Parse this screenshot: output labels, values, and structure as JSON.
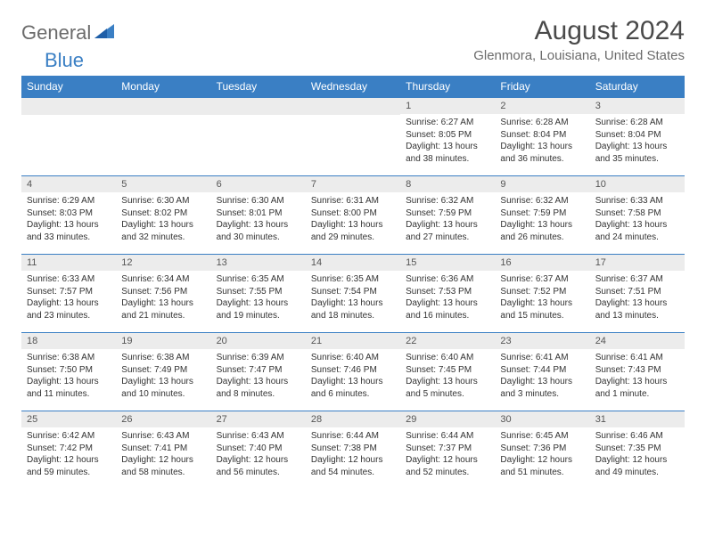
{
  "brand": {
    "part1": "General",
    "part2": "Blue"
  },
  "title": "August 2024",
  "location": "Glenmora, Louisiana, United States",
  "colors": {
    "header_bg": "#3a7fc4",
    "header_text": "#ffffff",
    "daynum_bg": "#ececec",
    "border": "#3a7fc4",
    "title_color": "#4a4a4a",
    "subtitle_color": "#6b6b6b"
  },
  "weekdays": [
    "Sunday",
    "Monday",
    "Tuesday",
    "Wednesday",
    "Thursday",
    "Friday",
    "Saturday"
  ],
  "weeks": [
    [
      null,
      null,
      null,
      null,
      {
        "n": "1",
        "sr": "6:27 AM",
        "ss": "8:05 PM",
        "dl": "13 hours and 38 minutes."
      },
      {
        "n": "2",
        "sr": "6:28 AM",
        "ss": "8:04 PM",
        "dl": "13 hours and 36 minutes."
      },
      {
        "n": "3",
        "sr": "6:28 AM",
        "ss": "8:04 PM",
        "dl": "13 hours and 35 minutes."
      }
    ],
    [
      {
        "n": "4",
        "sr": "6:29 AM",
        "ss": "8:03 PM",
        "dl": "13 hours and 33 minutes."
      },
      {
        "n": "5",
        "sr": "6:30 AM",
        "ss": "8:02 PM",
        "dl": "13 hours and 32 minutes."
      },
      {
        "n": "6",
        "sr": "6:30 AM",
        "ss": "8:01 PM",
        "dl": "13 hours and 30 minutes."
      },
      {
        "n": "7",
        "sr": "6:31 AM",
        "ss": "8:00 PM",
        "dl": "13 hours and 29 minutes."
      },
      {
        "n": "8",
        "sr": "6:32 AM",
        "ss": "7:59 PM",
        "dl": "13 hours and 27 minutes."
      },
      {
        "n": "9",
        "sr": "6:32 AM",
        "ss": "7:59 PM",
        "dl": "13 hours and 26 minutes."
      },
      {
        "n": "10",
        "sr": "6:33 AM",
        "ss": "7:58 PM",
        "dl": "13 hours and 24 minutes."
      }
    ],
    [
      {
        "n": "11",
        "sr": "6:33 AM",
        "ss": "7:57 PM",
        "dl": "13 hours and 23 minutes."
      },
      {
        "n": "12",
        "sr": "6:34 AM",
        "ss": "7:56 PM",
        "dl": "13 hours and 21 minutes."
      },
      {
        "n": "13",
        "sr": "6:35 AM",
        "ss": "7:55 PM",
        "dl": "13 hours and 19 minutes."
      },
      {
        "n": "14",
        "sr": "6:35 AM",
        "ss": "7:54 PM",
        "dl": "13 hours and 18 minutes."
      },
      {
        "n": "15",
        "sr": "6:36 AM",
        "ss": "7:53 PM",
        "dl": "13 hours and 16 minutes."
      },
      {
        "n": "16",
        "sr": "6:37 AM",
        "ss": "7:52 PM",
        "dl": "13 hours and 15 minutes."
      },
      {
        "n": "17",
        "sr": "6:37 AM",
        "ss": "7:51 PM",
        "dl": "13 hours and 13 minutes."
      }
    ],
    [
      {
        "n": "18",
        "sr": "6:38 AM",
        "ss": "7:50 PM",
        "dl": "13 hours and 11 minutes."
      },
      {
        "n": "19",
        "sr": "6:38 AM",
        "ss": "7:49 PM",
        "dl": "13 hours and 10 minutes."
      },
      {
        "n": "20",
        "sr": "6:39 AM",
        "ss": "7:47 PM",
        "dl": "13 hours and 8 minutes."
      },
      {
        "n": "21",
        "sr": "6:40 AM",
        "ss": "7:46 PM",
        "dl": "13 hours and 6 minutes."
      },
      {
        "n": "22",
        "sr": "6:40 AM",
        "ss": "7:45 PM",
        "dl": "13 hours and 5 minutes."
      },
      {
        "n": "23",
        "sr": "6:41 AM",
        "ss": "7:44 PM",
        "dl": "13 hours and 3 minutes."
      },
      {
        "n": "24",
        "sr": "6:41 AM",
        "ss": "7:43 PM",
        "dl": "13 hours and 1 minute."
      }
    ],
    [
      {
        "n": "25",
        "sr": "6:42 AM",
        "ss": "7:42 PM",
        "dl": "12 hours and 59 minutes."
      },
      {
        "n": "26",
        "sr": "6:43 AM",
        "ss": "7:41 PM",
        "dl": "12 hours and 58 minutes."
      },
      {
        "n": "27",
        "sr": "6:43 AM",
        "ss": "7:40 PM",
        "dl": "12 hours and 56 minutes."
      },
      {
        "n": "28",
        "sr": "6:44 AM",
        "ss": "7:38 PM",
        "dl": "12 hours and 54 minutes."
      },
      {
        "n": "29",
        "sr": "6:44 AM",
        "ss": "7:37 PM",
        "dl": "12 hours and 52 minutes."
      },
      {
        "n": "30",
        "sr": "6:45 AM",
        "ss": "7:36 PM",
        "dl": "12 hours and 51 minutes."
      },
      {
        "n": "31",
        "sr": "6:46 AM",
        "ss": "7:35 PM",
        "dl": "12 hours and 49 minutes."
      }
    ]
  ],
  "labels": {
    "sunrise": "Sunrise:",
    "sunset": "Sunset:",
    "daylight": "Daylight:"
  }
}
